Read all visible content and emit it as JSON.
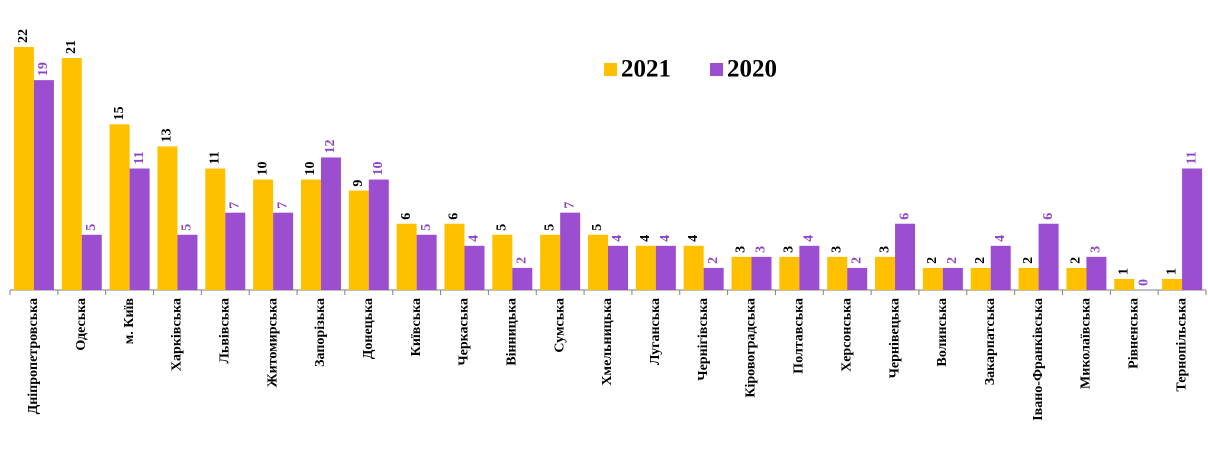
{
  "chart_data": {
    "type": "bar",
    "categories": [
      "Дніпропетровська",
      "Одеська",
      "м. Київ",
      "Харківська",
      "Львівська",
      "Житомирська",
      "Запорізька",
      "Донецька",
      "Київська",
      "Черкаська",
      "Вінницька",
      "Сумська",
      "Хмельницька",
      "Луганська",
      "Чернігівська",
      "Кіровоградська",
      "Полтавська",
      "Херсонська",
      "Чернівецька",
      "Волинська",
      "Закарпатська",
      "Івано-Франківська",
      "Миколаївська",
      "Рівненська",
      "Тернопільська"
    ],
    "series": [
      {
        "name": "2021",
        "color": "#ffc000",
        "label_color": "#000000",
        "values": [
          22,
          21,
          15,
          13,
          11,
          10,
          10,
          9,
          6,
          6,
          5,
          5,
          5,
          4,
          4,
          3,
          3,
          3,
          3,
          2,
          2,
          2,
          2,
          1,
          1
        ]
      },
      {
        "name": "2020",
        "color": "#9b4fd0",
        "label_color": "#8e44c8",
        "values": [
          19,
          5,
          11,
          5,
          7,
          7,
          12,
          10,
          5,
          4,
          2,
          7,
          4,
          4,
          2,
          3,
          4,
          2,
          6,
          2,
          4,
          6,
          3,
          0,
          11
        ]
      }
    ],
    "legend": "top-center"
  }
}
